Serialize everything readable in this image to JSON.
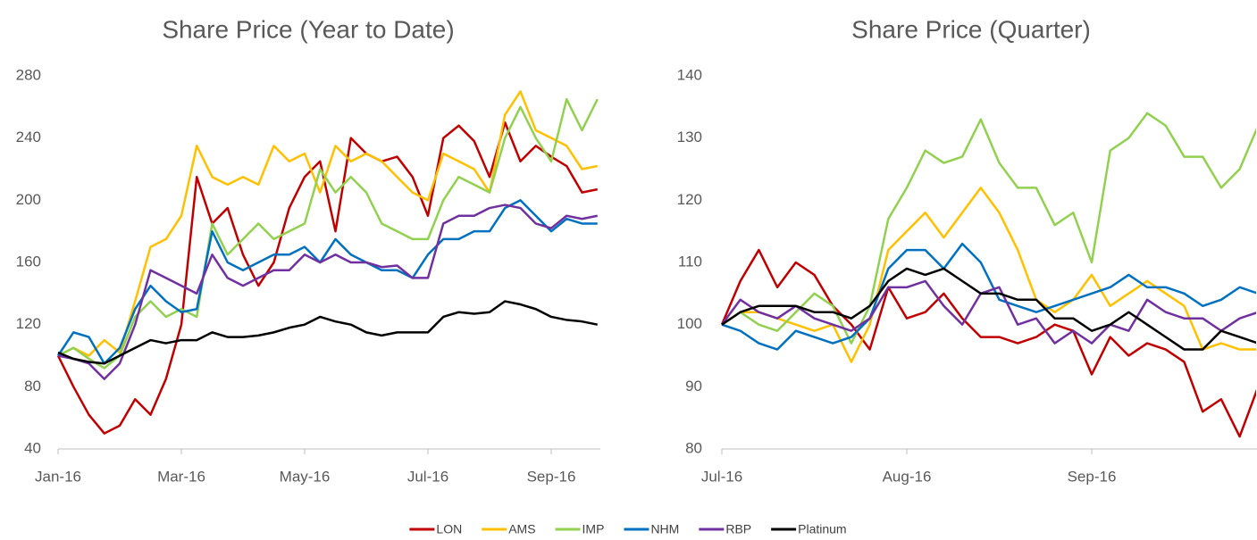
{
  "chart_data": [
    {
      "type": "line",
      "title": "Share Price (Year to Date)",
      "categories": [
        "Jan-16",
        null,
        null,
        null,
        null,
        null,
        null,
        null,
        "Mar-16",
        null,
        null,
        null,
        null,
        null,
        null,
        null,
        "May-16",
        null,
        null,
        null,
        null,
        null,
        null,
        null,
        "Jul-16",
        null,
        null,
        null,
        null,
        null,
        null,
        null,
        "Sep-16",
        null,
        null,
        null
      ],
      "ylim": [
        40,
        280
      ],
      "yticks": [
        40,
        80,
        120,
        160,
        200,
        240,
        280
      ],
      "series": [
        {
          "name": "LON",
          "color": "#c00000",
          "values": [
            100,
            80,
            62,
            50,
            55,
            72,
            62,
            85,
            120,
            215,
            185,
            195,
            165,
            145,
            160,
            195,
            215,
            225,
            180,
            240,
            230,
            225,
            228,
            215,
            190,
            240,
            248,
            238,
            215,
            250,
            225,
            235,
            228,
            222,
            205,
            207
          ]
        },
        {
          "name": "AMS",
          "color": "#ffc000",
          "values": [
            100,
            105,
            100,
            110,
            102,
            135,
            170,
            175,
            190,
            235,
            215,
            210,
            215,
            210,
            235,
            225,
            230,
            205,
            235,
            225,
            230,
            225,
            215,
            205,
            200,
            230,
            225,
            220,
            205,
            255,
            270,
            245,
            240,
            235,
            220,
            222
          ]
        },
        {
          "name": "IMP",
          "color": "#92d050",
          "values": [
            100,
            105,
            98,
            92,
            100,
            125,
            135,
            125,
            130,
            125,
            185,
            165,
            175,
            185,
            175,
            180,
            185,
            220,
            205,
            215,
            205,
            185,
            180,
            175,
            175,
            200,
            215,
            210,
            205,
            240,
            260,
            240,
            225,
            265,
            245,
            265
          ]
        },
        {
          "name": "NHM",
          "color": "#0070c0",
          "values": [
            100,
            115,
            112,
            95,
            105,
            130,
            145,
            135,
            128,
            130,
            180,
            160,
            155,
            160,
            165,
            165,
            170,
            160,
            175,
            165,
            160,
            155,
            155,
            150,
            165,
            175,
            175,
            180,
            180,
            195,
            200,
            190,
            180,
            188,
            185,
            185
          ]
        },
        {
          "name": "RBP",
          "color": "#7030a0",
          "values": [
            100,
            98,
            95,
            85,
            95,
            120,
            155,
            150,
            145,
            140,
            165,
            150,
            145,
            150,
            155,
            155,
            165,
            160,
            165,
            160,
            160,
            157,
            158,
            150,
            150,
            185,
            190,
            190,
            195,
            197,
            195,
            185,
            182,
            190,
            188,
            190
          ]
        },
        {
          "name": "Platinum",
          "color": "#000000",
          "values": [
            102,
            98,
            96,
            95,
            100,
            105,
            110,
            108,
            110,
            110,
            115,
            112,
            112,
            113,
            115,
            118,
            120,
            125,
            122,
            120,
            115,
            113,
            115,
            115,
            115,
            125,
            128,
            127,
            128,
            135,
            133,
            130,
            125,
            123,
            122,
            120
          ]
        }
      ]
    },
    {
      "type": "line",
      "title": "Share Price (Quarter)",
      "categories": [
        "Jul-16",
        null,
        null,
        null,
        null,
        null,
        null,
        null,
        null,
        null,
        "Aug-16",
        null,
        null,
        null,
        null,
        null,
        null,
        null,
        null,
        null,
        "Sep-16",
        null,
        null,
        null,
        null,
        null,
        null,
        null,
        null,
        null
      ],
      "ylim": [
        80,
        140
      ],
      "yticks": [
        80,
        90,
        100,
        110,
        120,
        130,
        140
      ],
      "series": [
        {
          "color": "#c00000",
          "values": [
            100,
            107,
            112,
            106,
            110,
            108,
            103,
            100,
            96,
            106,
            101,
            102,
            105,
            101,
            98,
            98,
            97,
            98,
            100,
            99,
            92,
            98,
            95,
            97,
            96,
            94,
            86,
            88,
            82,
            90
          ]
        },
        {
          "color": "#ffc000",
          "values": [
            100,
            102,
            102,
            101,
            100,
            99,
            100,
            94,
            100,
            112,
            115,
            118,
            114,
            118,
            122,
            118,
            112,
            104,
            102,
            104,
            108,
            103,
            105,
            107,
            105,
            103,
            96,
            97,
            96,
            96
          ]
        },
        {
          "color": "#92d050",
          "values": [
            100,
            102,
            100,
            99,
            102,
            105,
            103,
            97,
            103,
            117,
            122,
            128,
            126,
            127,
            133,
            126,
            122,
            122,
            116,
            118,
            110,
            128,
            130,
            134,
            132,
            127,
            127,
            122,
            125,
            132
          ]
        },
        {
          "color": "#0070c0",
          "values": [
            100,
            99,
            97,
            96,
            99,
            98,
            97,
            98,
            101,
            109,
            112,
            112,
            109,
            113,
            110,
            104,
            103,
            102,
            103,
            104,
            105,
            106,
            108,
            106,
            106,
            105,
            103,
            104,
            106,
            105
          ]
        },
        {
          "color": "#7030a0",
          "values": [
            100,
            104,
            102,
            101,
            103,
            101,
            100,
            99,
            101,
            106,
            106,
            107,
            103,
            100,
            105,
            106,
            100,
            101,
            97,
            99,
            97,
            100,
            99,
            104,
            102,
            101,
            101,
            99,
            101,
            102
          ]
        },
        {
          "color": "#000000",
          "values": [
            100,
            102,
            103,
            103,
            103,
            102,
            102,
            101,
            103,
            107,
            109,
            108,
            109,
            107,
            105,
            105,
            104,
            104,
            101,
            101,
            99,
            100,
            102,
            100,
            98,
            96,
            96,
            99,
            98,
            97
          ]
        }
      ]
    }
  ]
}
